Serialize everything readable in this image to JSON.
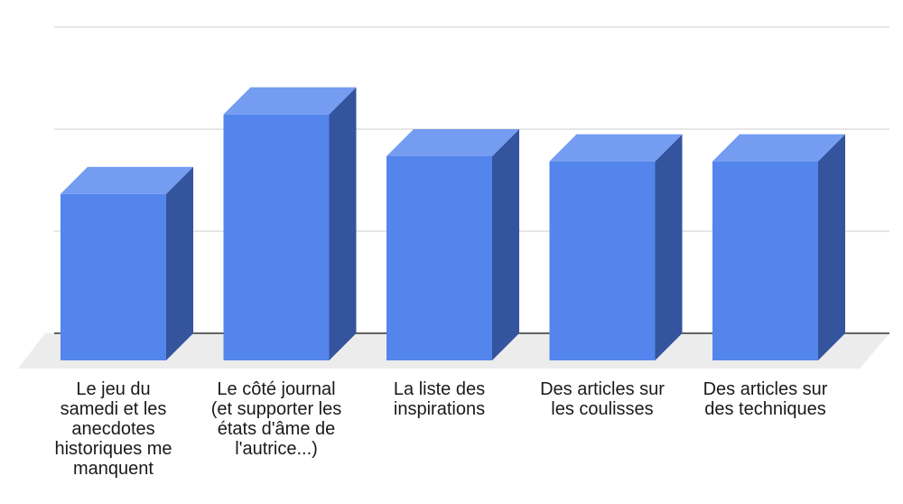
{
  "chart_data": {
    "type": "bar",
    "style": "3d",
    "title": "",
    "xlabel": "",
    "ylabel": "",
    "ylim": [
      0,
      3
    ],
    "grid": true,
    "legend": "none",
    "categories": [
      [
        "Le jeu du",
        "samedi et les",
        "anecdotes",
        "historiques me",
        "manquent"
      ],
      [
        "Le côté journal",
        "(et supporter les",
        "états d'âme de",
        "l'autrice...)"
      ],
      [
        "La liste des",
        "inspirations"
      ],
      [
        "Des articles sur",
        "les coulisses"
      ],
      [
        "Des articles sur",
        "des techniques"
      ]
    ],
    "values": [
      1.63,
      2.41,
      2.0,
      1.95,
      1.95
    ],
    "colors": {
      "front": "#5385ed",
      "top": "#749cf1",
      "side": "#34549e",
      "floor": "#ececec",
      "grid": "#cccccc",
      "axis": "#333333"
    }
  }
}
